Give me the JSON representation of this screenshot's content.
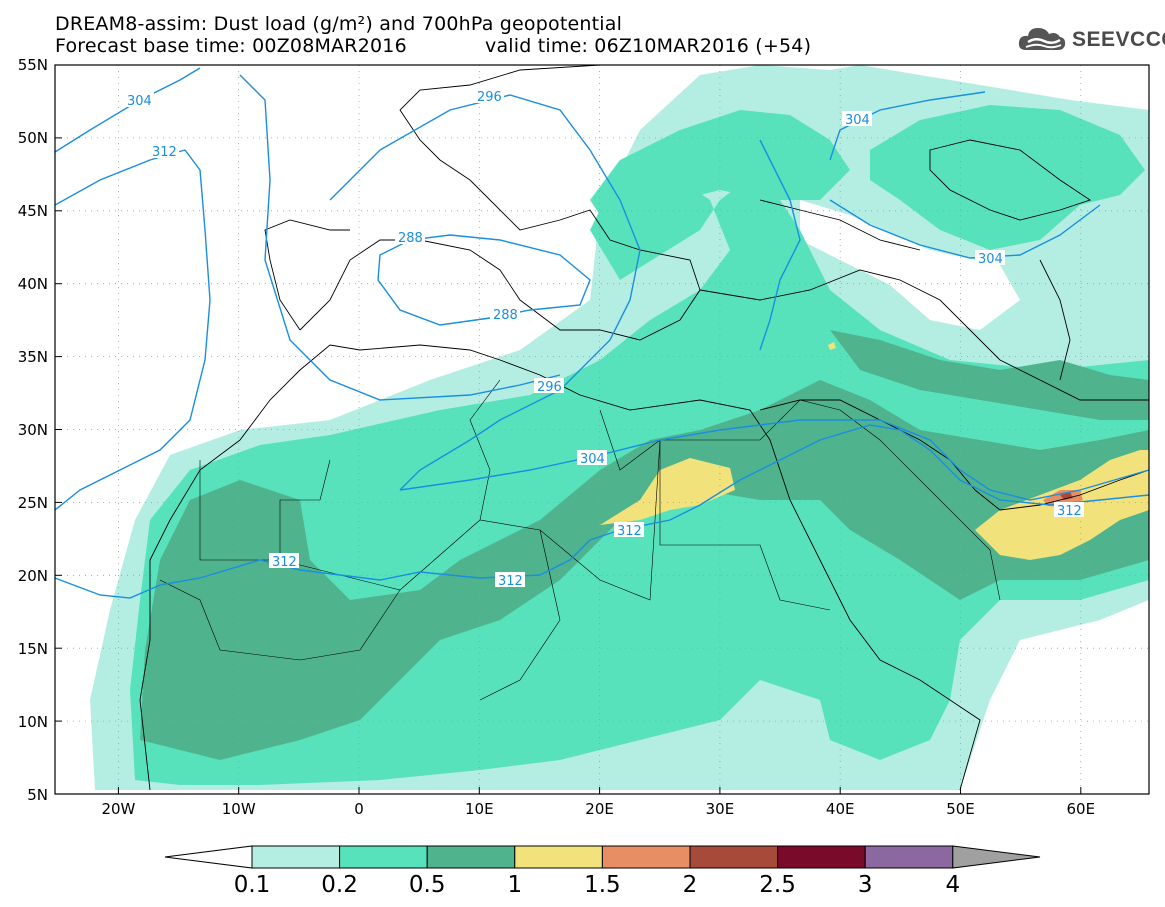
{
  "title": {
    "line1": "DREAM8-assim: Dust load (g/m²) and 700hPa geopotential",
    "line2_left": "Forecast base time: 00Z08MAR2016",
    "line2_right": "valid time: 06Z10MAR2016 (+54)"
  },
  "logo": {
    "text": "SEEVCCC",
    "icon": "cloud-icon"
  },
  "axes": {
    "lat_labels": [
      "55N",
      "50N",
      "45N",
      "40N",
      "35N",
      "30N",
      "25N",
      "20N",
      "15N",
      "10N",
      "5N"
    ],
    "lon_labels": [
      "20W",
      "10W",
      "0",
      "10E",
      "20E",
      "30E",
      "40E",
      "50E",
      "60E"
    ]
  },
  "contour_labels": [
    "304",
    "312",
    "296",
    "288",
    "288",
    "296",
    "304",
    "312",
    "312",
    "312",
    "312",
    "304",
    "304"
  ],
  "colorbar": {
    "levels": [
      "0.1",
      "0.2",
      "0.5",
      "1",
      "1.5",
      "2",
      "2.5",
      "3",
      "4"
    ],
    "colors": [
      "#ffffff",
      "#b4eee2",
      "#58e2bc",
      "#4fb48e",
      "#f2e27c",
      "#e88e64",
      "#a84a3a",
      "#7a0a2a",
      "#8c68a0",
      "#a0a0a0"
    ]
  },
  "colors": {
    "contour": "#1a8ee0",
    "dust_01": "#b4eee2",
    "dust_02": "#58e2bc",
    "dust_05": "#4fb48e",
    "dust_1": "#f2e27c",
    "dust_15": "#e88e64",
    "dust_2": "#a84a3a"
  }
}
